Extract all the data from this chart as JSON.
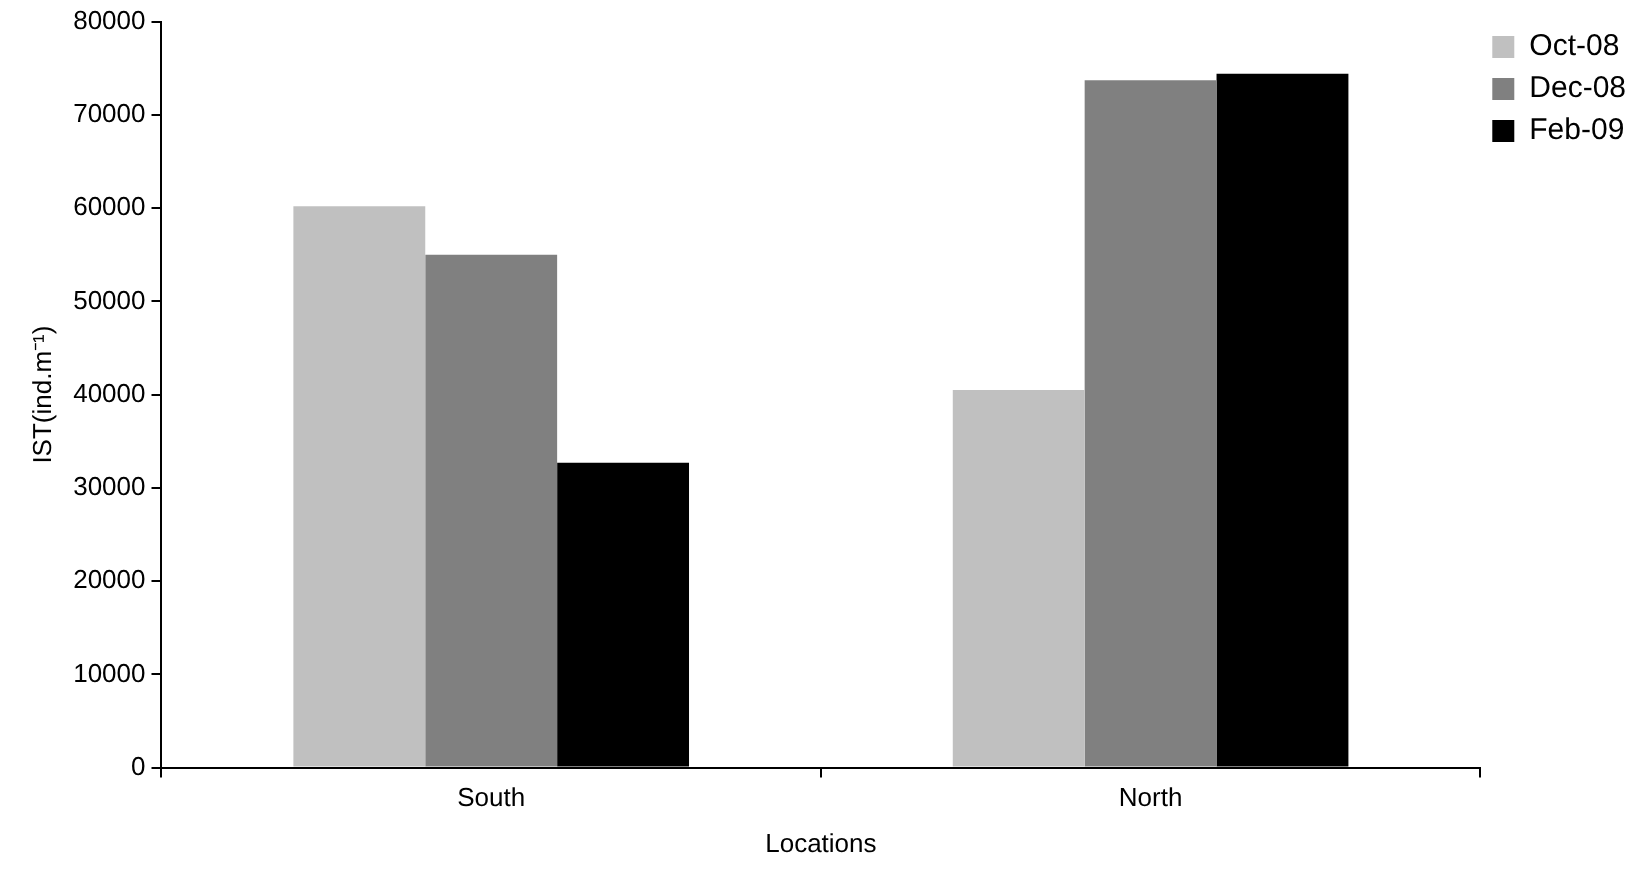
{
  "chart_data": {
    "type": "bar",
    "xlabel": "Locations",
    "ylabel": "IST(ind.m⁻¹)",
    "categories": [
      "South",
      "North"
    ],
    "series": [
      {
        "name": "Oct-08",
        "color": "#c0c0c0",
        "values": [
          60200,
          40500
        ]
      },
      {
        "name": "Dec-08",
        "color": "#808080",
        "values": [
          55000,
          73700
        ]
      },
      {
        "name": "Feb-09",
        "color": "#000000",
        "values": [
          32700,
          74400
        ]
      }
    ],
    "ylim": [
      0,
      80000
    ],
    "yticks": [
      0,
      10000,
      20000,
      30000,
      40000,
      50000,
      60000,
      70000,
      80000
    ],
    "grid": false,
    "legend": "top right"
  }
}
